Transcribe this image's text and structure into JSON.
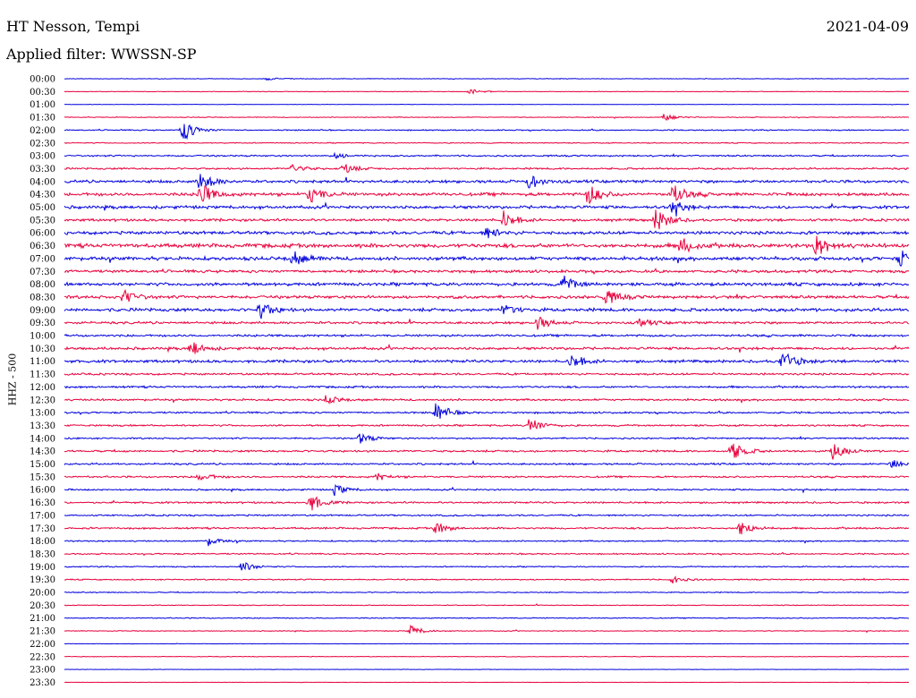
{
  "header": {
    "station": "HT Nesson, Tempi",
    "filter": "Applied filter: WWSSN-SP",
    "date": "2021-04-09"
  },
  "chart_data": {
    "type": "line",
    "title": "HT Nesson, Tempi",
    "subtitle": "Applied filter: WWSSN-SP",
    "ylabel": "HHZ - 500",
    "colors": [
      "#0000dd",
      "#e8003c"
    ],
    "time_labels": [
      "00:00",
      "00:30",
      "01:00",
      "01:30",
      "02:00",
      "02:30",
      "03:00",
      "03:30",
      "04:00",
      "04:30",
      "05:00",
      "05:30",
      "06:00",
      "06:30",
      "07:00",
      "07:30",
      "08:00",
      "08:30",
      "09:00",
      "09:30",
      "10:00",
      "10:30",
      "11:00",
      "11:30",
      "12:00",
      "12:30",
      "13:00",
      "13:30",
      "14:00",
      "14:30",
      "15:00",
      "15:30",
      "16:00",
      "16:30",
      "17:00",
      "17:30",
      "18:00",
      "18:30",
      "19:00",
      "19:30",
      "20:00",
      "20:30",
      "21:00",
      "21:30",
      "22:00",
      "22:30",
      "23:00",
      "23:30"
    ],
    "noise_level": [
      0.3,
      0.3,
      0.2,
      0.4,
      0.6,
      0.5,
      0.8,
      0.9,
      1.4,
      1.6,
      1.5,
      1.3,
      1.6,
      2.0,
      1.8,
      1.4,
      1.6,
      1.5,
      1.6,
      1.2,
      1.1,
      1.3,
      1.4,
      1.0,
      1.0,
      1.0,
      0.9,
      0.9,
      0.8,
      1.0,
      0.9,
      0.9,
      0.8,
      0.9,
      0.8,
      0.9,
      0.7,
      0.7,
      0.6,
      0.6,
      0.5,
      0.4,
      0.5,
      0.4,
      0.2,
      0.3,
      0.2,
      0.2
    ],
    "events": [
      {
        "trace": 0,
        "t": 0.24,
        "amp": 1.5
      },
      {
        "trace": 1,
        "t": 0.48,
        "amp": 3
      },
      {
        "trace": 3,
        "t": 0.71,
        "amp": 4
      },
      {
        "trace": 4,
        "t": 0.14,
        "amp": 14
      },
      {
        "trace": 6,
        "t": 0.32,
        "amp": 3
      },
      {
        "trace": 7,
        "t": 0.27,
        "amp": 5
      },
      {
        "trace": 7,
        "t": 0.33,
        "amp": 6
      },
      {
        "trace": 8,
        "t": 0.16,
        "amp": 12
      },
      {
        "trace": 8,
        "t": 0.55,
        "amp": 8
      },
      {
        "trace": 9,
        "t": 0.16,
        "amp": 14
      },
      {
        "trace": 9,
        "t": 0.29,
        "amp": 10
      },
      {
        "trace": 9,
        "t": 0.62,
        "amp": 12
      },
      {
        "trace": 9,
        "t": 0.72,
        "amp": 12
      },
      {
        "trace": 10,
        "t": 0.72,
        "amp": 8
      },
      {
        "trace": 11,
        "t": 0.52,
        "amp": 10
      },
      {
        "trace": 11,
        "t": 0.7,
        "amp": 14
      },
      {
        "trace": 12,
        "t": 0.5,
        "amp": 6
      },
      {
        "trace": 13,
        "t": 0.73,
        "amp": 10
      },
      {
        "trace": 13,
        "t": 0.89,
        "amp": 12
      },
      {
        "trace": 14,
        "t": 0.27,
        "amp": 9
      },
      {
        "trace": 14,
        "t": 0.99,
        "amp": 10
      },
      {
        "trace": 16,
        "t": 0.59,
        "amp": 9
      },
      {
        "trace": 17,
        "t": 0.07,
        "amp": 8
      },
      {
        "trace": 17,
        "t": 0.64,
        "amp": 10
      },
      {
        "trace": 18,
        "t": 0.23,
        "amp": 11
      },
      {
        "trace": 18,
        "t": 0.52,
        "amp": 6
      },
      {
        "trace": 19,
        "t": 0.56,
        "amp": 8
      },
      {
        "trace": 19,
        "t": 0.68,
        "amp": 5
      },
      {
        "trace": 21,
        "t": 0.15,
        "amp": 8
      },
      {
        "trace": 22,
        "t": 0.6,
        "amp": 9
      },
      {
        "trace": 22,
        "t": 0.85,
        "amp": 13
      },
      {
        "trace": 25,
        "t": 0.31,
        "amp": 5
      },
      {
        "trace": 26,
        "t": 0.44,
        "amp": 12
      },
      {
        "trace": 27,
        "t": 0.55,
        "amp": 10
      },
      {
        "trace": 28,
        "t": 0.35,
        "amp": 6
      },
      {
        "trace": 29,
        "t": 0.79,
        "amp": 11
      },
      {
        "trace": 29,
        "t": 0.91,
        "amp": 9
      },
      {
        "trace": 30,
        "t": 0.98,
        "amp": 5
      },
      {
        "trace": 31,
        "t": 0.16,
        "amp": 5
      },
      {
        "trace": 31,
        "t": 0.37,
        "amp": 4
      },
      {
        "trace": 32,
        "t": 0.32,
        "amp": 6
      },
      {
        "trace": 33,
        "t": 0.29,
        "amp": 11
      },
      {
        "trace": 35,
        "t": 0.44,
        "amp": 7
      },
      {
        "trace": 35,
        "t": 0.8,
        "amp": 9
      },
      {
        "trace": 36,
        "t": 0.17,
        "amp": 5
      },
      {
        "trace": 38,
        "t": 0.21,
        "amp": 6
      },
      {
        "trace": 39,
        "t": 0.72,
        "amp": 4
      },
      {
        "trace": 43,
        "t": 0.41,
        "amp": 6
      }
    ]
  }
}
